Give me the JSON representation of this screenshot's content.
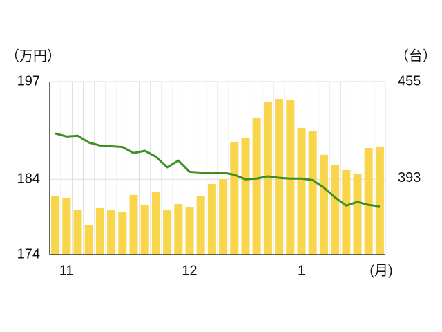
{
  "chart_data": {
    "type": "bar-line",
    "y_label": "（万円）",
    "y2_label": "（台）",
    "x_unit": "(月)",
    "categories": [
      null,
      "11",
      null,
      null,
      null,
      null,
      null,
      null,
      null,
      null,
      null,
      null,
      "12",
      null,
      null,
      null,
      null,
      null,
      null,
      null,
      null,
      null,
      "1",
      null,
      null,
      null,
      null,
      null,
      null,
      null
    ],
    "series": [
      {
        "type": "bar",
        "axis": "y2",
        "color": "#f8d54a",
        "values": [
          381.3,
          380.4,
          372.4,
          363.1,
          374.2,
          372.4,
          371.1,
          382.2,
          375.5,
          384.4,
          372.4,
          376.4,
          374.6,
          381.3,
          389.3,
          392.4,
          416.4,
          419.0,
          431.9,
          441.7,
          443.9,
          443.0,
          425.3,
          423.5,
          408.0,
          401.7,
          398.2,
          396.0,
          412.4,
          413.3
        ]
      },
      {
        "type": "line",
        "axis": "y",
        "color": "#3e8e27",
        "values": [
          190.1,
          189.7,
          189.8,
          188.9,
          188.5,
          188.4,
          188.3,
          187.5,
          187.8,
          187.0,
          185.6,
          186.5,
          185.0,
          184.9,
          184.8,
          184.9,
          184.6,
          184.0,
          184.1,
          184.4,
          184.2,
          184.1,
          184.1,
          183.9,
          182.9,
          181.6,
          180.5,
          181.0,
          180.6,
          180.4
        ]
      }
    ],
    "ylim": [
      174,
      197
    ],
    "yticks": [
      174,
      184,
      197
    ],
    "y2lim": [
      344,
      455
    ],
    "y2ticks": [
      393,
      455
    ],
    "grid": true
  }
}
